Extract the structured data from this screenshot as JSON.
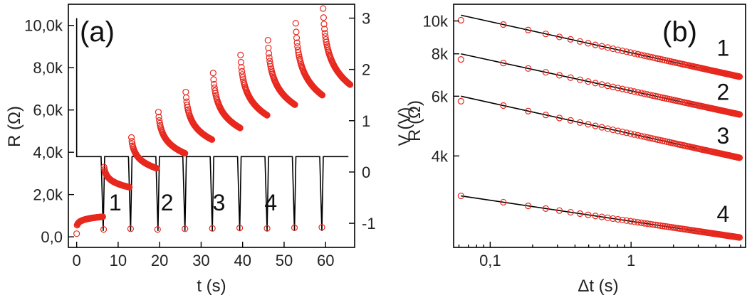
{
  "chart_data": [
    {
      "panel": "a",
      "type": "scatter",
      "panel_label": "(a)",
      "xlabel": "t (s)",
      "ylabel_left": "R (Ω)",
      "ylabel_right": "V (V)",
      "xlim": [
        -2,
        67
      ],
      "ylim_left": [
        -500,
        11000
      ],
      "ylim_right": [
        -1.47,
        3.27
      ],
      "x_ticks": [
        0,
        10,
        20,
        30,
        40,
        50,
        60
      ],
      "x_tick_labels": [
        "0",
        "10",
        "20",
        "30",
        "40",
        "50",
        "60"
      ],
      "y_left_ticks": [
        0,
        2000,
        4000,
        6000,
        8000,
        10000
      ],
      "y_left_tick_labels": [
        "0,0",
        "2,0k",
        "4,0k",
        "6,0k",
        "8,0k",
        "10,0k"
      ],
      "y_right_ticks": [
        -1,
        0,
        1,
        2,
        3
      ],
      "y_right_tick_labels": [
        "-1",
        "0",
        "1",
        "2",
        "3"
      ],
      "annotations": [
        {
          "text": "1",
          "x": 9.3,
          "y": 1250
        },
        {
          "text": "2",
          "x": 21.8,
          "y": 1250
        },
        {
          "text": "3",
          "x": 34.3,
          "y": 1250
        },
        {
          "text": "4",
          "x": 46.8,
          "y": 1250
        }
      ],
      "series": [
        {
          "name": "R",
          "axis": "left",
          "relaxations": [
            {
              "t_start": 0.1,
              "t_end": 6.3,
              "R_start": 550,
              "R_end": 950
            },
            {
              "t_start": 6.6,
              "t_end": 12.7,
              "R_start": 3300,
              "R_end": 2350
            },
            {
              "t_start": 13.2,
              "t_end": 19.2,
              "R_start": 4700,
              "R_end": 3250
            },
            {
              "t_start": 19.7,
              "t_end": 26.1,
              "R_start": 5900,
              "R_end": 3950
            },
            {
              "t_start": 26.3,
              "t_end": 32.6,
              "R_start": 6850,
              "R_end": 4600
            },
            {
              "t_start": 32.9,
              "t_end": 39.4,
              "R_start": 7750,
              "R_end": 5150
            },
            {
              "t_start": 39.5,
              "t_end": 45.9,
              "R_start": 8600,
              "R_end": 5750
            },
            {
              "t_start": 46.1,
              "t_end": 52.6,
              "R_start": 9300,
              "R_end": 6250
            },
            {
              "t_start": 52.8,
              "t_end": 59.2,
              "R_start": 10100,
              "R_end": 6700
            },
            {
              "t_start": 59.4,
              "t_end": 65.9,
              "R_start": 10800,
              "R_end": 7200
            }
          ],
          "pulse_points": [
            {
              "t": 0,
              "R": 150
            },
            {
              "t": 6.5,
              "R": 350
            },
            {
              "t": 13.0,
              "R": 380
            },
            {
              "t": 19.5,
              "R": 350
            },
            {
              "t": 26.1,
              "R": 380
            },
            {
              "t": 32.7,
              "R": 400
            },
            {
              "t": 39.3,
              "R": 420
            },
            {
              "t": 45.9,
              "R": 400
            },
            {
              "t": 52.5,
              "R": 430
            },
            {
              "t": 59.1,
              "R": 450
            }
          ]
        },
        {
          "name": "V",
          "axis": "right",
          "pulse_times": [
            6.4,
            13.0,
            19.6,
            26.1,
            32.7,
            39.3,
            45.9,
            52.5,
            59.1
          ],
          "V_baseline": 0.3,
          "V_pulse": -1.15,
          "V_initial": 3.0,
          "t_initial": [
            0,
            0.3
          ],
          "t_final": 65.5
        }
      ]
    },
    {
      "panel": "b",
      "type": "line",
      "panel_label": "(b)",
      "xlabel": "Δt (s)",
      "ylabel": "R (Ω)",
      "xscale": "log",
      "yscale": "log",
      "xlim": [
        0.055,
        6.5
      ],
      "ylim": [
        2150,
        11200
      ],
      "x_ticks": [
        0.1,
        1
      ],
      "x_tick_labels": [
        "0,1",
        "1"
      ],
      "y_ticks": [
        4000,
        6000,
        8000,
        10000
      ],
      "y_tick_labels": [
        "4k",
        "6k",
        "8k",
        "10k"
      ],
      "series": [
        {
          "name": "1",
          "fit_start": [
            0.062,
            10400
          ],
          "fit_end": [
            5.9,
            6850
          ],
          "first_point": 10050
        },
        {
          "name": "2",
          "fit_start": [
            0.062,
            8000
          ],
          "fit_end": [
            5.9,
            5300
          ],
          "first_point": 7700
        },
        {
          "name": "3",
          "fit_start": [
            0.062,
            6000
          ],
          "fit_end": [
            5.9,
            3950
          ],
          "first_point": 5800
        },
        {
          "name": "4",
          "fit_start": [
            0.062,
            3050
          ],
          "fit_end": [
            5.9,
            2300
          ],
          "first_point": 3050
        }
      ],
      "point_dt": [
        0.062,
        0.124,
        0.186,
        0.248,
        0.31,
        0.372,
        0.434,
        0.496,
        0.558,
        0.62,
        0.682,
        0.744,
        0.806,
        0.868,
        0.93,
        0.992,
        1.054,
        1.116,
        1.178,
        1.24,
        1.302,
        1.364,
        1.426,
        1.488,
        1.55,
        1.612,
        1.674,
        1.736,
        1.798,
        1.86,
        1.922,
        1.984,
        2.046,
        2.108,
        2.17,
        2.232,
        2.294,
        2.356,
        2.418,
        2.48,
        2.542,
        2.604,
        2.666,
        2.728,
        2.79,
        2.852,
        2.914,
        2.976,
        3.038,
        3.1,
        3.162,
        3.224,
        3.286,
        3.348,
        3.41,
        3.472,
        3.534,
        3.596,
        3.658,
        3.72,
        3.782,
        3.844,
        3.906,
        3.968,
        4.03,
        4.092,
        4.154,
        4.216,
        4.278,
        4.34,
        4.402,
        4.464,
        4.526,
        4.588,
        4.65,
        4.712,
        4.774,
        4.836,
        4.898,
        4.96,
        5.022,
        5.084,
        5.146,
        5.208,
        5.27,
        5.332,
        5.394,
        5.456,
        5.518,
        5.58,
        5.642,
        5.704,
        5.766,
        5.828,
        5.89
      ],
      "annotations": [
        {
          "text": "1",
          "x": 4.5,
          "y": 7900
        },
        {
          "text": "2",
          "x": 4.5,
          "y": 5850
        },
        {
          "text": "3",
          "x": 4.5,
          "y": 4350
        },
        {
          "text": "4",
          "x": 4.5,
          "y": 2560
        }
      ]
    }
  ]
}
